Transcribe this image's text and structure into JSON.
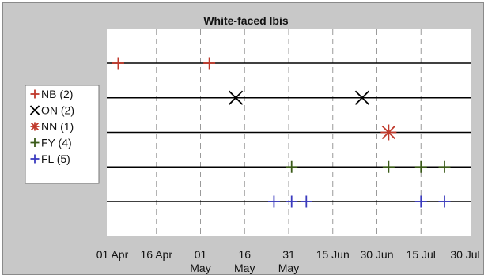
{
  "chart_data": {
    "type": "scatter",
    "title": "White-faced Ibis",
    "xlabel": "",
    "ylabel": "",
    "x_tick_labels": [
      [
        "01 Apr"
      ],
      [
        "16 Apr"
      ],
      [
        "01",
        "May"
      ],
      [
        "16",
        "May"
      ],
      [
        "31",
        "May"
      ],
      [
        "15 Jun"
      ],
      [
        "30 Jun"
      ],
      [
        "15 Jul"
      ],
      [
        "30 Jul"
      ]
    ],
    "xlim": [
      "2000-04-01",
      "2000-07-30"
    ],
    "grid": "vertical dashed",
    "legend_placement": "left",
    "series": [
      {
        "name": "NB (2)",
        "marker": "plus",
        "color": "#c0392b",
        "dates": [
          "2000-04-03",
          "2000-05-04"
        ]
      },
      {
        "name": "ON (2)",
        "marker": "cross",
        "color": "#000000",
        "dates": [
          "2000-05-13",
          "2000-06-25"
        ]
      },
      {
        "name": "NN (1)",
        "marker": "star",
        "color": "#c0392b",
        "dates": [
          "2000-07-04"
        ]
      },
      {
        "name": "FY (4)",
        "marker": "plus",
        "color": "#3a5a18",
        "dates": [
          "2000-06-01",
          "2000-07-04",
          "2000-07-15",
          "2000-07-23"
        ]
      },
      {
        "name": "FL (5)",
        "marker": "plus",
        "color": "#3b3bbf",
        "dates": [
          "2000-05-26",
          "2000-06-01",
          "2000-06-06",
          "2000-07-15",
          "2000-07-23"
        ]
      }
    ]
  }
}
